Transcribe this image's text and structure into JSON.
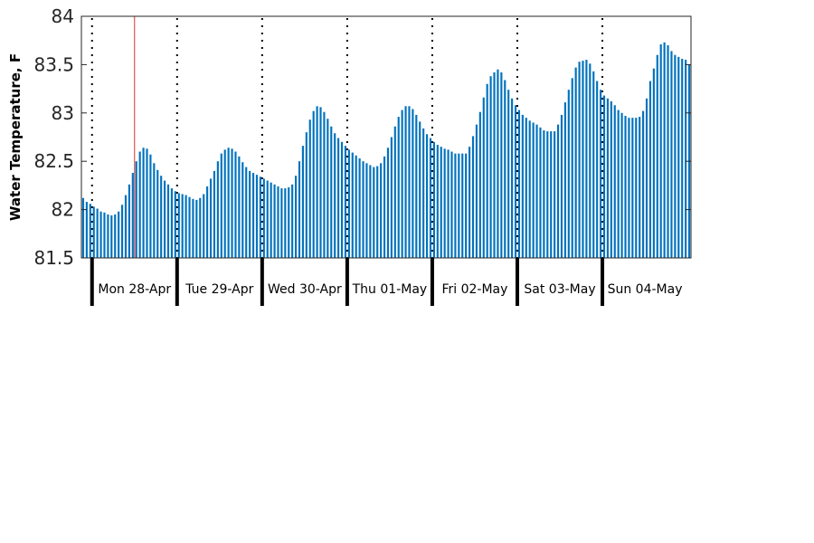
{
  "chart_data": {
    "type": "bar",
    "title": "",
    "xlabel": "",
    "ylabel": "Water Temperature, F",
    "ylim": [
      81.5,
      84
    ],
    "yticks": [
      81.5,
      82,
      82.5,
      83,
      83.5,
      84
    ],
    "ytick_labels": [
      "81.5",
      "82",
      "82.5",
      "83",
      "83.5",
      "84"
    ],
    "grid": false,
    "series_color": "#0072bd",
    "marker_color": "#e03030",
    "x_start": "2025-04-27 21:00",
    "step_hours": 1,
    "marker_time": "2025-04-28 12:00",
    "day_labels": [
      {
        "date": "2025-04-28",
        "label": "Mon 28-Apr"
      },
      {
        "date": "2025-04-29",
        "label": "Tue 29-Apr"
      },
      {
        "date": "2025-04-30",
        "label": "Wed 30-Apr"
      },
      {
        "date": "2025-05-01",
        "label": "Thu 01-May"
      },
      {
        "date": "2025-05-02",
        "label": "Fri 02-May"
      },
      {
        "date": "2025-05-03",
        "label": "Sat 03-May"
      },
      {
        "date": "2025-05-04",
        "label": "Sun 04-May"
      }
    ],
    "values": [
      82.12,
      82.08,
      82.06,
      82.03,
      82.01,
      81.98,
      81.97,
      81.95,
      81.94,
      81.95,
      81.98,
      82.05,
      82.15,
      82.26,
      82.38,
      82.5,
      82.6,
      82.64,
      82.63,
      82.57,
      82.48,
      82.41,
      82.35,
      82.3,
      82.26,
      82.22,
      82.19,
      82.17,
      82.16,
      82.15,
      82.13,
      82.11,
      82.1,
      82.12,
      82.16,
      82.24,
      82.32,
      82.4,
      82.5,
      82.58,
      82.62,
      82.64,
      82.63,
      82.6,
      82.55,
      82.49,
      82.44,
      82.4,
      82.38,
      82.36,
      82.34,
      82.32,
      82.3,
      82.28,
      82.26,
      82.24,
      82.22,
      82.22,
      82.23,
      82.26,
      82.35,
      82.5,
      82.66,
      82.8,
      82.93,
      83.02,
      83.07,
      83.06,
      83.01,
      82.94,
      82.86,
      82.79,
      82.74,
      82.7,
      82.66,
      82.62,
      82.59,
      82.56,
      82.53,
      82.5,
      82.48,
      82.46,
      82.44,
      82.45,
      82.48,
      82.55,
      82.64,
      82.75,
      82.86,
      82.96,
      83.03,
      83.07,
      83.07,
      83.04,
      82.98,
      82.91,
      82.84,
      82.78,
      82.74,
      82.7,
      82.67,
      82.65,
      82.63,
      82.62,
      82.6,
      82.58,
      82.58,
      82.58,
      82.58,
      82.65,
      82.76,
      82.88,
      83.01,
      83.16,
      83.3,
      83.38,
      83.42,
      83.45,
      83.42,
      83.34,
      83.24,
      83.15,
      83.08,
      83.03,
      82.98,
      82.95,
      82.92,
      82.9,
      82.88,
      82.85,
      82.82,
      82.81,
      82.81,
      82.81,
      82.88,
      82.98,
      83.11,
      83.24,
      83.36,
      83.47,
      83.53,
      83.54,
      83.55,
      83.51,
      83.43,
      83.33,
      83.24,
      83.18,
      83.15,
      83.12,
      83.08,
      83.03,
      83.0,
      82.97,
      82.95,
      82.95,
      82.95,
      82.96,
      83.02,
      83.15,
      83.33,
      83.46,
      83.6,
      83.71,
      83.73,
      83.7,
      83.64,
      83.6,
      83.58,
      83.56,
      83.55,
      83.5
    ]
  }
}
